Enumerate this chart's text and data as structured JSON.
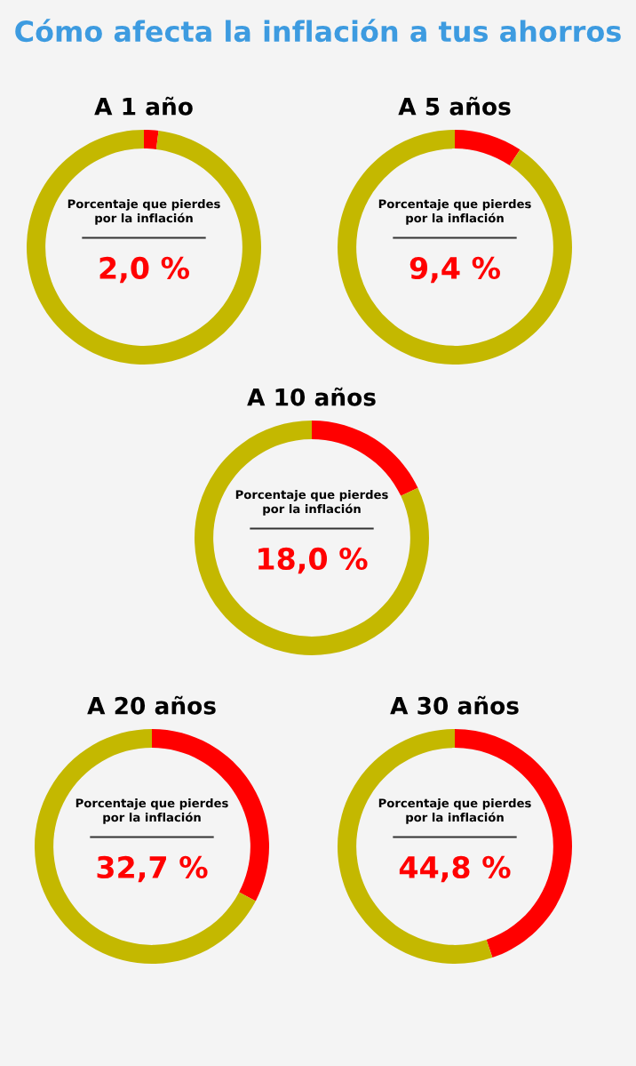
{
  "chart_data": [
    {
      "type": "other",
      "title": "Cómo afecta la inflación a tus ahorros"
    },
    {
      "type": "donut",
      "title": "A 1 año",
      "categories": [
        null,
        null
      ],
      "values": [
        2.0,
        98.0
      ],
      "colors": [
        "#ff0000",
        "#c4b800"
      ],
      "annotations": [
        "Porcentaje que pierdes\npor la inflación",
        "2,0 %"
      ]
    },
    {
      "type": "donut",
      "title": "A 5 años",
      "categories": [
        null,
        null
      ],
      "values": [
        9.4,
        90.6
      ],
      "colors": [
        "#ff0000",
        "#c4b800"
      ],
      "annotations": [
        "Porcentaje que pierdes\npor la inflación",
        "9,4 %"
      ]
    },
    {
      "type": "donut",
      "title": "A 10 años",
      "categories": [
        null,
        null
      ],
      "values": [
        18.0,
        82.0
      ],
      "colors": [
        "#ff0000",
        "#c4b800"
      ],
      "annotations": [
        "Porcentaje que pierdes\npor la inflación",
        "18,0 %"
      ]
    },
    {
      "type": "donut",
      "title": "A 20 años",
      "categories": [
        null,
        null
      ],
      "values": [
        32.7,
        67.3
      ],
      "colors": [
        "#ff0000",
        "#c4b800"
      ],
      "annotations": [
        "Porcentaje que pierdes\npor la inflación",
        "32,7 %"
      ]
    },
    {
      "type": "donut",
      "title": "A 30 años",
      "categories": [
        null,
        null
      ],
      "values": [
        44.8,
        55.2
      ],
      "colors": [
        "#ff0000",
        "#c4b800"
      ],
      "annotations": [
        "Porcentaje que pierdes\npor la inflación",
        "44,8 %"
      ]
    }
  ]
}
